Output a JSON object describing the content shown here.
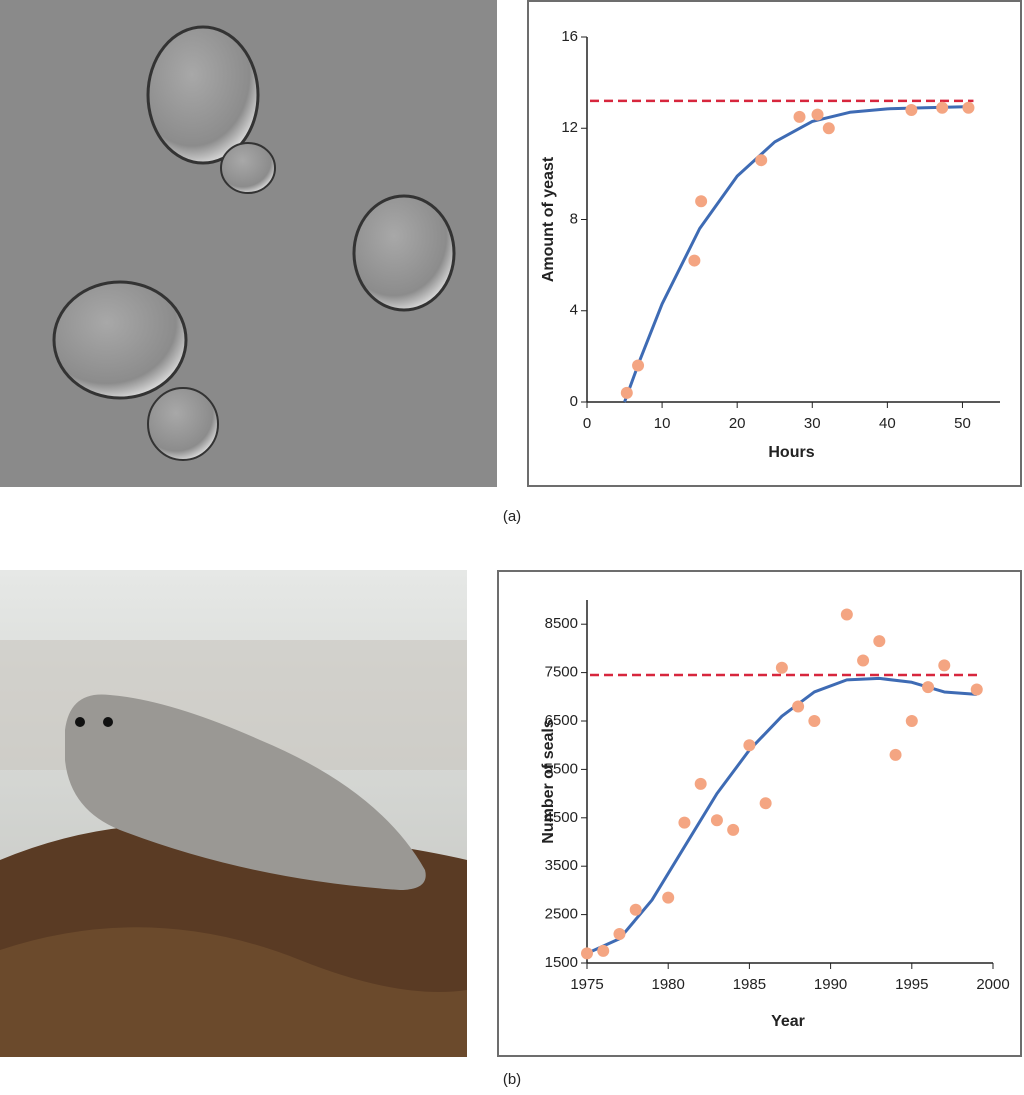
{
  "chart_data": [
    {
      "type": "scatter",
      "caption": "(a)",
      "x_label": "Hours",
      "y_label": "Amount of yeast",
      "xlim": [
        0,
        55
      ],
      "xticks": [
        0,
        10,
        20,
        30,
        40,
        50
      ],
      "ylim": [
        0,
        16
      ],
      "yticks": [
        0,
        4,
        8,
        12,
        16
      ],
      "points": {
        "color": "#f4a582",
        "x": [
          5.3,
          6.8,
          14.3,
          15.2,
          23.2,
          28.3,
          30.7,
          32.2,
          43.2,
          47.3,
          50.8
        ],
        "values": [
          0.4,
          1.6,
          6.2,
          8.8,
          10.6,
          12.5,
          12.6,
          12.0,
          12.8,
          12.9,
          12.9
        ]
      },
      "fit": {
        "color": "#3e6bb4",
        "x": [
          5,
          7,
          10,
          15,
          20,
          25,
          30,
          35,
          40,
          45,
          51
        ],
        "values": [
          0,
          1.8,
          4.3,
          7.6,
          9.9,
          11.4,
          12.3,
          12.7,
          12.85,
          12.9,
          12.95
        ]
      },
      "carrying_capacity": {
        "value": 13.2,
        "color": "#d7263d"
      }
    },
    {
      "type": "scatter",
      "caption": "(b)",
      "x_label": "Year",
      "y_label": "Number of seals",
      "xlim": [
        1975,
        2000
      ],
      "xticks": [
        1975,
        1980,
        1985,
        1990,
        1995,
        2000
      ],
      "ylim": [
        1500,
        9000
      ],
      "yticks": [
        1500,
        2500,
        3500,
        4500,
        5500,
        6500,
        7500,
        8500
      ],
      "points": {
        "color": "#f4a582",
        "x": [
          1975,
          1976,
          1977,
          1978,
          1980,
          1981,
          1982,
          1983,
          1984,
          1985,
          1986,
          1987,
          1988,
          1989,
          1991,
          1992,
          1993,
          1994,
          1995,
          1996,
          1997,
          1999
        ],
        "values": [
          1700,
          1750,
          2100,
          2600,
          2850,
          4400,
          5200,
          4450,
          4250,
          6000,
          4800,
          7600,
          6800,
          6500,
          8700,
          7750,
          8150,
          5800,
          6500,
          7200,
          7650,
          7150
        ]
      },
      "fit": {
        "color": "#3e6bb4",
        "x": [
          1975,
          1977,
          1979,
          1981,
          1983,
          1985,
          1987,
          1989,
          1991,
          1993,
          1995,
          1997,
          1999
        ],
        "values": [
          1700,
          2000,
          2800,
          3900,
          5000,
          5900,
          6600,
          7100,
          7350,
          7380,
          7300,
          7100,
          7050
        ]
      },
      "carrying_capacity": {
        "value": 7450,
        "color": "#d7263d"
      }
    }
  ]
}
